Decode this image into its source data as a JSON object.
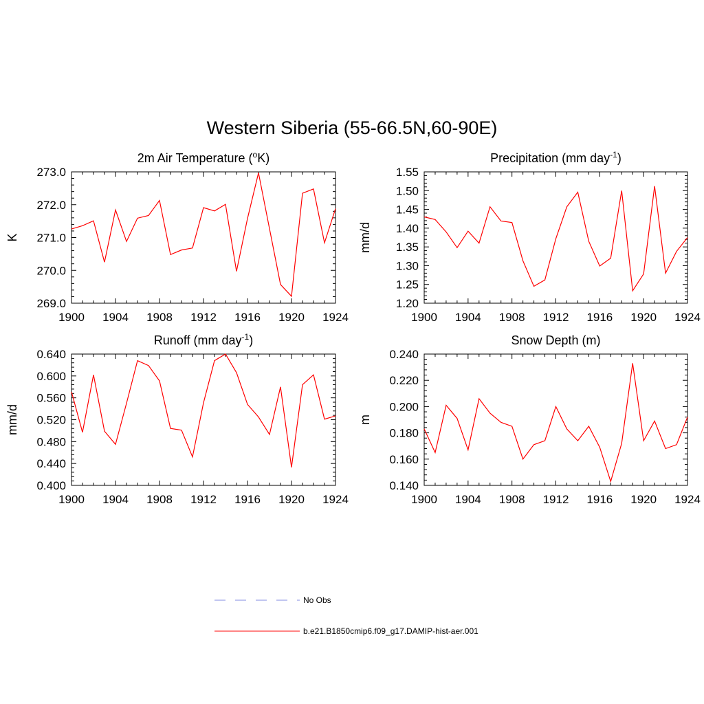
{
  "figure": {
    "title": "Western Siberia (55-66.5N,60-90E)"
  },
  "legend": [
    {
      "label": "No Obs",
      "color": "#9aa2e6",
      "dash": "dashed"
    },
    {
      "label": "b.e21.B1850cmip6.f09_g17.DAMIP-hist-aer.001",
      "color": "#ff3a3a",
      "dash": "solid"
    }
  ],
  "chart_data": [
    {
      "type": "line",
      "title": "2m Air Temperature (oK)",
      "title_parts": {
        "pre": "2m Air Temperature (",
        "sup": "o",
        "post": "K)"
      },
      "ylabel": "K",
      "x": [
        1900,
        1901,
        1902,
        1903,
        1904,
        1905,
        1906,
        1907,
        1908,
        1909,
        1910,
        1911,
        1912,
        1913,
        1914,
        1915,
        1916,
        1917,
        1918,
        1919,
        1920,
        1921,
        1922,
        1923,
        1924
      ],
      "xlim": [
        1900,
        1924
      ],
      "xticks": [
        1900,
        1904,
        1908,
        1912,
        1916,
        1920,
        1924
      ],
      "ylim": [
        269.0,
        273.0
      ],
      "yticks": [
        269.0,
        270.0,
        271.0,
        272.0,
        273.0
      ],
      "ytick_labels": [
        "269.0",
        "270.0",
        "271.0",
        "272.0",
        "273.0"
      ],
      "series": [
        {
          "color": "#ff0000",
          "values": [
            271.26,
            271.36,
            271.51,
            270.25,
            271.84,
            270.88,
            271.59,
            271.67,
            272.13,
            270.48,
            270.62,
            270.68,
            271.91,
            271.81,
            272.01,
            269.97,
            271.58,
            272.97,
            271.27,
            269.57,
            269.21,
            272.35,
            272.48,
            270.84,
            271.88
          ]
        }
      ]
    },
    {
      "type": "line",
      "title": "Precipitation (mm day-1)",
      "title_parts": {
        "pre": "Precipitation (mm day",
        "sup": "-1",
        "post": ")"
      },
      "ylabel": "mm/d",
      "x": [
        1900,
        1901,
        1902,
        1903,
        1904,
        1905,
        1906,
        1907,
        1908,
        1909,
        1910,
        1911,
        1912,
        1913,
        1914,
        1915,
        1916,
        1917,
        1918,
        1919,
        1920,
        1921,
        1922,
        1923,
        1924
      ],
      "xlim": [
        1900,
        1924
      ],
      "xticks": [
        1900,
        1904,
        1908,
        1912,
        1916,
        1920,
        1924
      ],
      "ylim": [
        1.2,
        1.55
      ],
      "yticks": [
        1.2,
        1.25,
        1.3,
        1.35,
        1.4,
        1.45,
        1.5,
        1.55
      ],
      "ytick_labels": [
        "1.20",
        "1.25",
        "1.30",
        "1.35",
        "1.40",
        "1.45",
        "1.50",
        "1.55"
      ],
      "series": [
        {
          "color": "#ff0000",
          "values": [
            1.43,
            1.423,
            1.39,
            1.348,
            1.392,
            1.36,
            1.457,
            1.419,
            1.415,
            1.313,
            1.245,
            1.262,
            1.372,
            1.457,
            1.496,
            1.365,
            1.299,
            1.32,
            1.5,
            1.233,
            1.278,
            1.512,
            1.28,
            1.338,
            1.375
          ]
        }
      ]
    },
    {
      "type": "line",
      "title": "Runoff (mm day-1)",
      "title_parts": {
        "pre": "Runoff (mm day",
        "sup": "-1",
        "post": ")"
      },
      "ylabel": "mm/d",
      "x": [
        1900,
        1901,
        1902,
        1903,
        1904,
        1905,
        1906,
        1907,
        1908,
        1909,
        1910,
        1911,
        1912,
        1913,
        1914,
        1915,
        1916,
        1917,
        1918,
        1919,
        1920,
        1921,
        1922,
        1923,
        1924
      ],
      "xlim": [
        1900,
        1924
      ],
      "xticks": [
        1900,
        1904,
        1908,
        1912,
        1916,
        1920,
        1924
      ],
      "ylim": [
        0.4,
        0.64
      ],
      "yticks": [
        0.4,
        0.44,
        0.48,
        0.52,
        0.56,
        0.6,
        0.64
      ],
      "ytick_labels": [
        "0.400",
        "0.440",
        "0.480",
        "0.520",
        "0.560",
        "0.600",
        "0.640"
      ],
      "series": [
        {
          "color": "#ff0000",
          "values": [
            0.571,
            0.497,
            0.602,
            0.499,
            0.475,
            0.55,
            0.628,
            0.619,
            0.591,
            0.504,
            0.501,
            0.452,
            0.551,
            0.628,
            0.64,
            0.606,
            0.548,
            0.525,
            0.493,
            0.58,
            0.433,
            0.584,
            0.602,
            0.521,
            0.527
          ]
        }
      ]
    },
    {
      "type": "line",
      "title": "Snow Depth (m)",
      "title_parts": {
        "pre": "Snow Depth (m)",
        "sup": "",
        "post": ""
      },
      "ylabel": "m",
      "x": [
        1900,
        1901,
        1902,
        1903,
        1904,
        1905,
        1906,
        1907,
        1908,
        1909,
        1910,
        1911,
        1912,
        1913,
        1914,
        1915,
        1916,
        1917,
        1918,
        1919,
        1920,
        1921,
        1922,
        1923,
        1924
      ],
      "xlim": [
        1900,
        1924
      ],
      "xticks": [
        1900,
        1904,
        1908,
        1912,
        1916,
        1920,
        1924
      ],
      "ylim": [
        0.14,
        0.24
      ],
      "yticks": [
        0.14,
        0.16,
        0.18,
        0.2,
        0.22,
        0.24
      ],
      "ytick_labels": [
        "0.140",
        "0.160",
        "0.180",
        "0.200",
        "0.220",
        "0.240"
      ],
      "series": [
        {
          "color": "#ff0000",
          "values": [
            0.183,
            0.165,
            0.201,
            0.191,
            0.167,
            0.206,
            0.195,
            0.188,
            0.185,
            0.16,
            0.171,
            0.174,
            0.2,
            0.183,
            0.174,
            0.185,
            0.169,
            0.143,
            0.172,
            0.233,
            0.174,
            0.189,
            0.168,
            0.171,
            0.192
          ]
        }
      ]
    }
  ]
}
